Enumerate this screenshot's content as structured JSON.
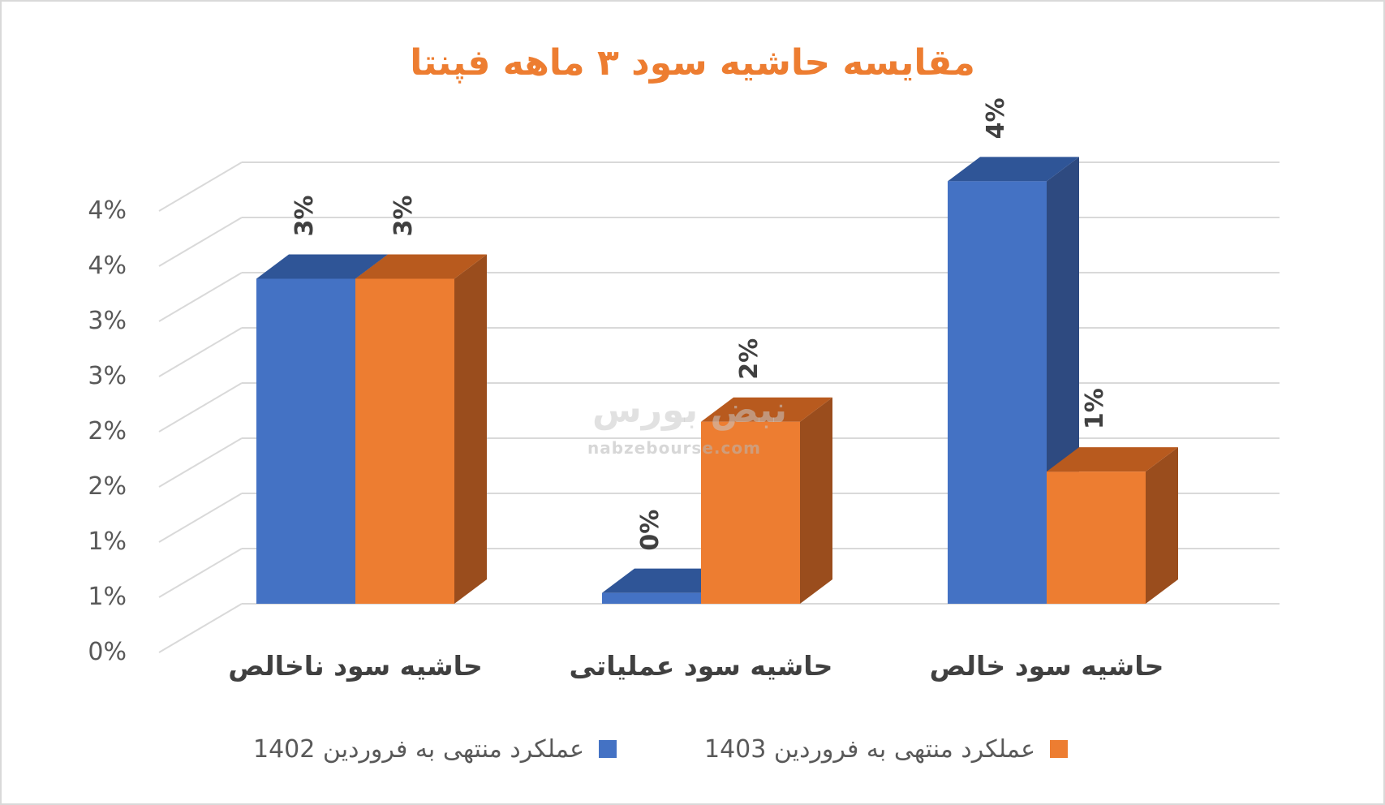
{
  "chart_data": {
    "type": "bar",
    "title": "مقایسه حاشیه سود ۳ ماهه فپنتا",
    "categories": [
      "حاشیه سود ناخالص",
      "حاشیه سود عملیاتی",
      "حاشیه سود خالص"
    ],
    "series": [
      {
        "name": "عملکرد منتهی به فروردین 1402",
        "values": [
          0.03,
          0.001,
          0.039
        ],
        "labels": [
          "3%",
          "0%",
          "4%"
        ],
        "color": "#4472c4",
        "side_color": "#2e4a80",
        "top_color": "#2f5597"
      },
      {
        "name": "عملکرد منتهی به فروردین 1403",
        "values": [
          0.03,
          0.0168,
          0.0122
        ],
        "labels": [
          "3%",
          "2%",
          "1%"
        ],
        "color": "#ed7d31",
        "side_color": "#9a4d1d",
        "top_color": "#b85a1e"
      }
    ],
    "y_tick_labels": [
      "0%",
      "1%",
      "1%",
      "2%",
      "2%",
      "3%",
      "3%",
      "4%",
      "4%"
    ],
    "ylim": [
      0,
      0.04
    ],
    "grid": true,
    "legend_position": "bottom"
  },
  "watermark": {
    "text": "نبض بورس",
    "url": "nabzebourse.com"
  },
  "colors": {
    "grid": "#d9d9d9",
    "axis_text": "#595959",
    "label_text": "#404040",
    "title": "#ed7d31"
  }
}
